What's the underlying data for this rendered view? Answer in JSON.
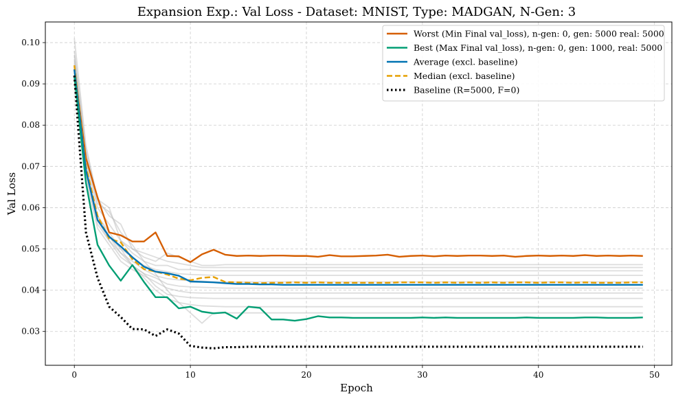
{
  "chart_data": {
    "type": "line",
    "title": "Expansion Exp.: Val Loss - Dataset: MNIST, Type: MADGAN, N-Gen: 3",
    "xlabel": "Epoch",
    "ylabel": "Val Loss",
    "xlim": [
      -2.5,
      51.5
    ],
    "ylim": [
      0.0218,
      0.105
    ],
    "xticks": [
      0,
      10,
      20,
      30,
      40,
      50
    ],
    "yticks": [
      0.03,
      0.04,
      0.05,
      0.06,
      0.07,
      0.08,
      0.09,
      0.1
    ],
    "ytick_labels": [
      "0.03",
      "0.04",
      "0.05",
      "0.06",
      "0.07",
      "0.08",
      "0.09",
      "0.10"
    ],
    "grid": true,
    "legend_position": "top-right",
    "colors": {
      "worst": "#d55e00",
      "best": "#009e73",
      "average": "#0072b2",
      "median": "#e69f00",
      "baseline": "#000000",
      "background_runs": "#bbbbbb"
    },
    "series": [
      {
        "key": "worst",
        "name": "Worst (Min Final val_loss), n-gen: 0, gen: 5000 real: 5000",
        "style": "solid",
        "values": [
          0.0935,
          0.072,
          0.0625,
          0.054,
          0.0533,
          0.0518,
          0.0518,
          0.054,
          0.0483,
          0.0482,
          0.0468,
          0.0487,
          0.0498,
          0.0486,
          0.0483,
          0.0484,
          0.0483,
          0.0484,
          0.0484,
          0.0483,
          0.0483,
          0.0481,
          0.0485,
          0.0482,
          0.0482,
          0.0483,
          0.0484,
          0.0486,
          0.0481,
          0.0483,
          0.0484,
          0.0482,
          0.0484,
          0.0483,
          0.0484,
          0.0484,
          0.0483,
          0.0484,
          0.0481,
          0.0483,
          0.0484,
          0.0483,
          0.0484,
          0.0483,
          0.0485,
          0.0483,
          0.0484,
          0.0483,
          0.0484,
          0.0483
        ]
      },
      {
        "key": "best",
        "name": "Best (Max Final val_loss), n-gen: 0, gen: 1000, real: 5000",
        "style": "solid",
        "values": [
          0.092,
          0.066,
          0.051,
          0.046,
          0.0423,
          0.0461,
          0.042,
          0.0383,
          0.0383,
          0.0356,
          0.036,
          0.0348,
          0.0344,
          0.0346,
          0.0331,
          0.036,
          0.0357,
          0.0329,
          0.0329,
          0.0326,
          0.033,
          0.0337,
          0.0334,
          0.0334,
          0.0333,
          0.0333,
          0.0333,
          0.0333,
          0.0333,
          0.0333,
          0.0334,
          0.0333,
          0.0334,
          0.0333,
          0.0333,
          0.0333,
          0.0333,
          0.0333,
          0.0333,
          0.0334,
          0.0333,
          0.0333,
          0.0333,
          0.0333,
          0.0334,
          0.0334,
          0.0333,
          0.0333,
          0.0333,
          0.0334
        ]
      },
      {
        "key": "average",
        "name": "Average (excl. baseline)",
        "style": "solid",
        "values": [
          0.0935,
          0.069,
          0.057,
          0.053,
          0.0506,
          0.048,
          0.0457,
          0.0445,
          0.0441,
          0.0435,
          0.0421,
          0.042,
          0.0419,
          0.0417,
          0.0415,
          0.0415,
          0.0414,
          0.0414,
          0.0413,
          0.0413,
          0.0413,
          0.0413,
          0.0413,
          0.0413,
          0.0413,
          0.0413,
          0.0413,
          0.0413,
          0.0413,
          0.0413,
          0.0413,
          0.0413,
          0.0413,
          0.0413,
          0.0413,
          0.0413,
          0.0413,
          0.0413,
          0.0413,
          0.0413,
          0.0413,
          0.0413,
          0.0413,
          0.0413,
          0.0413,
          0.0413,
          0.0413,
          0.0413,
          0.0413,
          0.0413
        ]
      },
      {
        "key": "median",
        "name": "Median (excl. baseline)",
        "style": "dashed",
        "values": [
          0.0945,
          0.07,
          0.058,
          0.0525,
          0.0516,
          0.0475,
          0.0451,
          0.0445,
          0.0438,
          0.0428,
          0.0424,
          0.043,
          0.0432,
          0.042,
          0.0419,
          0.0418,
          0.0417,
          0.0418,
          0.0418,
          0.0419,
          0.0418,
          0.0419,
          0.0418,
          0.0418,
          0.0418,
          0.0418,
          0.0418,
          0.0418,
          0.0419,
          0.0419,
          0.0419,
          0.0418,
          0.0419,
          0.0418,
          0.0419,
          0.0418,
          0.0419,
          0.0418,
          0.0419,
          0.0419,
          0.0418,
          0.0419,
          0.0419,
          0.0418,
          0.0419,
          0.0418,
          0.0418,
          0.0418,
          0.0419,
          0.0419
        ]
      },
      {
        "key": "baseline",
        "name": "Baseline (R=5000, F=0)",
        "style": "dotted",
        "values": [
          0.092,
          0.054,
          0.043,
          0.036,
          0.0335,
          0.0306,
          0.0305,
          0.0289,
          0.0305,
          0.0295,
          0.0265,
          0.0261,
          0.0259,
          0.0262,
          0.0262,
          0.0263,
          0.0263,
          0.0263,
          0.0263,
          0.0263,
          0.0263,
          0.0263,
          0.0263,
          0.0263,
          0.0263,
          0.0263,
          0.0263,
          0.0263,
          0.0263,
          0.0263,
          0.0263,
          0.0263,
          0.0263,
          0.0263,
          0.0263,
          0.0263,
          0.0263,
          0.0263,
          0.0263,
          0.0263,
          0.0263,
          0.0263,
          0.0263,
          0.0263,
          0.0263,
          0.0263,
          0.0263,
          0.0263,
          0.0263,
          0.0263
        ]
      }
    ],
    "background_runs": [
      {
        "start": 0.101,
        "mid": [
          0.075,
          0.062,
          0.058,
          0.056,
          0.05,
          0.048,
          0.047,
          0.049,
          0.048,
          0.047,
          0.046,
          0.046
        ],
        "plateau": 0.0462
      },
      {
        "start": 0.096,
        "mid": [
          0.072,
          0.06,
          0.056,
          0.052,
          0.049,
          0.047,
          0.046,
          0.046,
          0.045,
          0.045,
          0.0448,
          0.0447
        ],
        "plateau": 0.0447
      },
      {
        "start": 0.094,
        "mid": [
          0.07,
          0.058,
          0.054,
          0.05,
          0.048,
          0.046,
          0.045,
          0.0445,
          0.044,
          0.0438,
          0.0437,
          0.0436
        ],
        "plateau": 0.0436
      },
      {
        "start": 0.093,
        "mid": [
          0.069,
          0.057,
          0.053,
          0.049,
          0.047,
          0.045,
          0.0435,
          0.0428,
          0.0425,
          0.0423,
          0.0422,
          0.042
        ],
        "plateau": 0.042
      },
      {
        "start": 0.092,
        "mid": [
          0.068,
          0.056,
          0.052,
          0.048,
          0.046,
          0.044,
          0.043,
          0.0415,
          0.041,
          0.0408,
          0.0407,
          0.0406
        ],
        "plateau": 0.0405
      },
      {
        "start": 0.091,
        "mid": [
          0.067,
          0.055,
          0.051,
          0.047,
          0.045,
          0.0435,
          0.042,
          0.0405,
          0.0398,
          0.0394,
          0.0393,
          0.0393
        ],
        "plateau": 0.0393
      },
      {
        "start": 0.094,
        "mid": [
          0.07,
          0.057,
          0.052,
          0.049,
          0.046,
          0.044,
          0.041,
          0.039,
          0.0385,
          0.0382,
          0.0381,
          0.038
        ],
        "plateau": 0.038
      },
      {
        "start": 0.095,
        "mid": [
          0.071,
          0.058,
          0.053,
          0.05,
          0.046,
          0.043,
          0.04,
          0.038,
          0.037,
          0.0365,
          0.0362,
          0.0361
        ],
        "plateau": 0.036
      },
      {
        "start": 0.097,
        "mid": [
          0.073,
          0.061,
          0.059,
          0.054,
          0.051,
          0.047,
          0.044,
          0.04,
          0.037,
          0.0345,
          0.032,
          0.0345
        ],
        "plateau": 0.0345
      },
      {
        "start": 0.098,
        "mid": [
          0.074,
          0.062,
          0.06,
          0.052,
          0.05,
          0.049,
          0.048,
          0.047,
          0.0465,
          0.046,
          0.0455,
          0.0455
        ],
        "plateau": 0.0455
      }
    ]
  }
}
